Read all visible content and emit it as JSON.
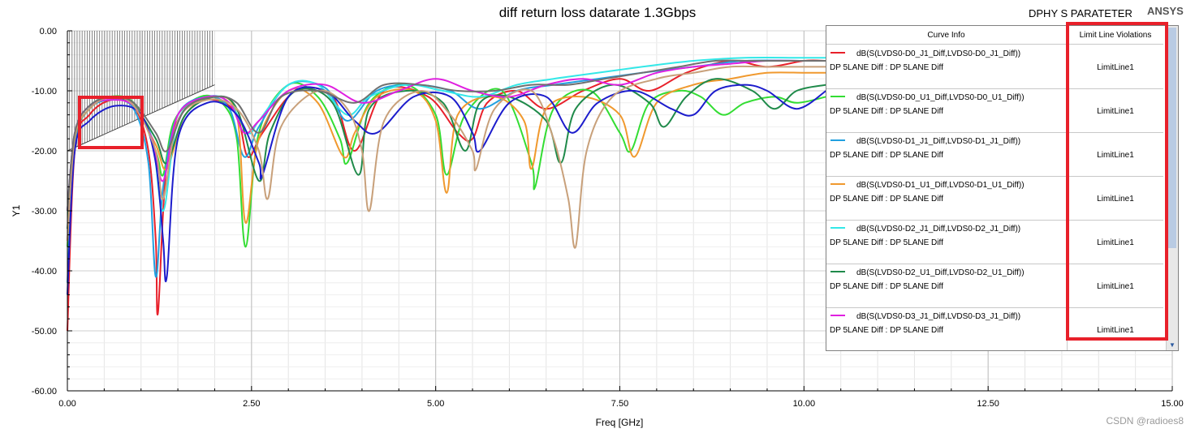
{
  "header": {
    "title": "diff return loss datarate 1.3Gbps",
    "project": "DPHY S PARATETER",
    "brand": "ANSYS"
  },
  "watermark": "CSDN @radioes8",
  "legend": {
    "col1": "Curve Info",
    "col2": "Limit Line Violations",
    "rows": [
      {
        "name": "dB(S(LVDS0-D0_J1_Diff,LVDS0-D0_J1_Diff))",
        "desc": "DP 5LANE Diff : DP 5LANE Diff",
        "violation": "LimitLine1",
        "color": "#e8202a"
      },
      {
        "name": "dB(S(LVDS0-D0_U1_Diff,LVDS0-D0_U1_Diff))",
        "desc": "DP 5LANE Diff : DP 5LANE Diff",
        "violation": "LimitLine1",
        "color": "#33dd33"
      },
      {
        "name": "dB(S(LVDS0-D1_J1_Diff,LVDS0-D1_J1_Diff))",
        "desc": "DP 5LANE Diff : DP 5LANE Diff",
        "violation": "LimitLine1",
        "color": "#22a0e0"
      },
      {
        "name": "dB(S(LVDS0-D1_U1_Diff,LVDS0-D1_U1_Diff))",
        "desc": "DP 5LANE Diff : DP 5LANE Diff",
        "violation": "LimitLine1",
        "color": "#f0992e"
      },
      {
        "name": "dB(S(LVDS0-D2_J1_Diff,LVDS0-D2_J1_Diff))",
        "desc": "DP 5LANE Diff : DP 5LANE Diff",
        "violation": "LimitLine1",
        "color": "#33e8e8"
      },
      {
        "name": "dB(S(LVDS0-D2_U1_Diff,LVDS0-D2_U1_Diff))",
        "desc": "DP 5LANE Diff : DP 5LANE Diff",
        "violation": "LimitLine1",
        "color": "#1f8a4a"
      },
      {
        "name": "dB(S(LVDS0-D3_J1_Diff,LVDS0-D3_J1_Diff))",
        "desc": "DP 5LANE Diff : DP 5LANE Diff",
        "violation": "LimitLine1",
        "color": "#e020e0"
      }
    ]
  },
  "chart_data": {
    "type": "line",
    "title": "diff return loss datarate 1.3Gbps",
    "xlabel": "Freq [GHz]",
    "ylabel": "Y1",
    "xlim": [
      0,
      15
    ],
    "ylim": [
      -60,
      0
    ],
    "x_ticks": [
      "0.00",
      "2.50",
      "5.00",
      "7.50",
      "10.00",
      "12.50",
      "15.00"
    ],
    "y_ticks": [
      "0.00",
      "-10.00",
      "-20.00",
      "-30.00",
      "-40.00",
      "-50.00",
      "-60.00"
    ],
    "grid": true,
    "limit_line": {
      "x": [
        0,
        2.0
      ],
      "y": [
        -20,
        -9
      ]
    },
    "series": [
      {
        "name": "dB(S(LVDS0-D0_J1_Diff,LVDS0-D0_J1_Diff))",
        "color": "#e8202a",
        "x": [
          0,
          0.1,
          0.3,
          0.6,
          0.9,
          1.1,
          1.2,
          1.23,
          1.35,
          1.6,
          2.0,
          2.3,
          2.45,
          2.65,
          3.1,
          3.6,
          3.9,
          4.3,
          4.9,
          5.3,
          5.5,
          5.7,
          6.1,
          6.5,
          7.0,
          7.5,
          7.9,
          8.4,
          9.0,
          9.5,
          10.0,
          10.3
        ],
        "y": [
          -50,
          -20,
          -14,
          -11.5,
          -12.5,
          -20,
          -35,
          -47,
          -22,
          -13,
          -11.5,
          -14,
          -21,
          -17,
          -10,
          -11,
          -20,
          -10,
          -11,
          -17,
          -18,
          -12,
          -10,
          -13,
          -10,
          -8,
          -10,
          -7,
          -5,
          -6,
          -5,
          -5
        ]
      },
      {
        "name": "dB(S(LVDS0-D0_U1_Diff,LVDS0-D0_U1_Diff))",
        "color": "#33dd33",
        "x": [
          0,
          0.1,
          0.3,
          0.55,
          0.9,
          1.2,
          1.3,
          1.45,
          1.8,
          2.1,
          2.3,
          2.42,
          2.6,
          3.0,
          3.4,
          3.7,
          3.8,
          4.1,
          4.6,
          5.0,
          5.15,
          5.4,
          5.9,
          6.3,
          6.35,
          6.6,
          7.1,
          7.5,
          7.65,
          7.9,
          8.3,
          8.6,
          8.9,
          9.2,
          9.6,
          9.9,
          10.3
        ],
        "y": [
          -36,
          -18,
          -13,
          -11,
          -12,
          -20,
          -24,
          -15,
          -11,
          -12,
          -18,
          -36,
          -17,
          -9,
          -11,
          -18,
          -22,
          -12,
          -9,
          -14,
          -24,
          -14,
          -10,
          -22,
          -26,
          -13,
          -10,
          -17,
          -20,
          -12,
          -10,
          -11,
          -14,
          -12,
          -11,
          -12,
          -11
        ]
      },
      {
        "name": "dB(S(LVDS0-D1_J1_Diff,LVDS0-D1_J1_Diff))",
        "color": "#22a0e0",
        "x": [
          0,
          0.1,
          0.3,
          0.6,
          0.9,
          1.1,
          1.2,
          1.3,
          1.5,
          1.9,
          2.2,
          2.4,
          2.6,
          3.0,
          3.5,
          3.8,
          4.2,
          4.7,
          5.2,
          5.6,
          6.1,
          6.6,
          7.2,
          7.8,
          8.5,
          9.2,
          10.0,
          10.3
        ],
        "y": [
          -42,
          -19,
          -13,
          -11.5,
          -13,
          -22,
          -41,
          -26,
          -14,
          -11,
          -13,
          -21,
          -16,
          -9,
          -9.5,
          -15,
          -10,
          -9,
          -10,
          -13,
          -10,
          -9,
          -8,
          -7,
          -6,
          -5,
          -5,
          -5
        ]
      },
      {
        "name": "dB(S(LVDS0-D1_U1_Diff,LVDS0-D1_U1_Diff))",
        "color": "#f0992e",
        "x": [
          0,
          0.1,
          0.3,
          0.6,
          0.9,
          1.2,
          1.35,
          1.6,
          2.0,
          2.3,
          2.42,
          2.6,
          3.0,
          3.4,
          3.75,
          3.9,
          4.2,
          4.7,
          5.0,
          5.15,
          5.3,
          5.8,
          6.2,
          6.3,
          6.5,
          7.0,
          7.5,
          7.7,
          8.0,
          8.5,
          9.0,
          9.5,
          10.0,
          10.3
        ],
        "y": [
          -35,
          -18,
          -13,
          -11,
          -12.5,
          -19,
          -23,
          -14,
          -11,
          -14,
          -32,
          -18,
          -10,
          -12,
          -21,
          -17,
          -11,
          -10,
          -15,
          -27,
          -14,
          -11,
          -15,
          -23,
          -13,
          -11,
          -14,
          -21,
          -12,
          -9,
          -8,
          -7,
          -7,
          -7
        ]
      },
      {
        "name": "dB(S(LVDS0-D2_J1_Diff,LVDS0-D2_J1_Diff))",
        "color": "#33e8e8",
        "x": [
          0,
          0.1,
          0.3,
          0.6,
          0.9,
          1.15,
          1.3,
          1.5,
          1.9,
          2.2,
          2.45,
          2.6,
          3.0,
          3.4,
          3.8,
          4.1,
          4.6,
          5.1,
          5.6,
          6.1,
          6.6,
          7.2,
          7.8,
          8.5,
          9.2,
          10.0,
          10.3
        ],
        "y": [
          -30,
          -17,
          -12.5,
          -11,
          -12.5,
          -18,
          -30,
          -15,
          -11,
          -12,
          -17,
          -15,
          -9,
          -9,
          -14,
          -11,
          -9,
          -10,
          -11,
          -9,
          -8,
          -7,
          -6,
          -5,
          -4.5,
          -4.5,
          -4.5
        ]
      },
      {
        "name": "dB(S(LVDS0-D2_U1_Diff,LVDS0-D2_U1_Diff))",
        "color": "#1f8a4a",
        "x": [
          0,
          0.1,
          0.3,
          0.6,
          0.9,
          1.2,
          1.35,
          1.6,
          2.0,
          2.3,
          2.6,
          2.75,
          3.1,
          3.6,
          3.95,
          4.1,
          4.6,
          5.1,
          5.4,
          5.6,
          6.0,
          6.5,
          6.7,
          6.9,
          7.4,
          7.9,
          8.1,
          8.4,
          8.8,
          9.3,
          9.6,
          9.9,
          10.3
        ],
        "y": [
          -33,
          -18,
          -13,
          -11,
          -12.5,
          -18,
          -22,
          -14,
          -11,
          -13,
          -25,
          -17,
          -10,
          -12,
          -24,
          -13,
          -10,
          -12,
          -20,
          -12,
          -11,
          -15,
          -22,
          -13,
          -9,
          -12,
          -16,
          -11,
          -8,
          -10,
          -13,
          -10,
          -9
        ]
      },
      {
        "name": "dB(S(LVDS0-D3_J1_Diff,LVDS0-D3_J1_Diff))",
        "color": "#e020e0",
        "x": [
          0,
          0.1,
          0.3,
          0.6,
          0.9,
          1.15,
          1.3,
          1.5,
          1.9,
          2.2,
          2.4,
          2.6,
          3.0,
          3.5,
          4.0,
          4.5,
          5.0,
          5.5,
          6.0,
          6.5,
          7.0,
          7.5,
          8.0,
          8.5,
          9.0,
          9.5,
          10.0,
          10.3
        ],
        "y": [
          -30,
          -17,
          -12.5,
          -11.5,
          -12.5,
          -18,
          -25,
          -14,
          -11,
          -12,
          -17,
          -15,
          -10,
          -9,
          -12,
          -10,
          -8,
          -10,
          -11,
          -9,
          -8,
          -9,
          -7,
          -6,
          -5.5,
          -5,
          -5,
          -5
        ]
      },
      {
        "name": "",
        "color": "#1c1ccc",
        "x": [
          0,
          0.1,
          0.3,
          0.65,
          1.0,
          1.2,
          1.3,
          1.35,
          1.5,
          1.9,
          2.3,
          2.6,
          2.65,
          3.0,
          3.5,
          3.9,
          4.2,
          4.7,
          5.2,
          5.5,
          5.6,
          6.0,
          6.5,
          6.85,
          7.2,
          7.7,
          8.2,
          8.5,
          8.8,
          9.2,
          9.5,
          9.9,
          10.3
        ],
        "y": [
          -44,
          -20,
          -15,
          -12.5,
          -14,
          -22,
          -35,
          -41,
          -18,
          -12,
          -14,
          -22,
          -24,
          -11,
          -10,
          -15,
          -17,
          -11,
          -11,
          -17,
          -20,
          -12,
          -11,
          -17,
          -12,
          -10,
          -13,
          -14,
          -10,
          -9,
          -10,
          -13,
          -10
        ]
      },
      {
        "name": "",
        "color": "#c8a07a",
        "x": [
          0,
          0.1,
          0.3,
          0.6,
          0.9,
          1.2,
          1.3,
          1.5,
          1.9,
          2.3,
          2.6,
          2.72,
          2.9,
          3.4,
          3.8,
          4.0,
          4.1,
          4.3,
          4.8,
          5.2,
          5.5,
          5.55,
          5.8,
          6.3,
          6.6,
          6.8,
          6.9,
          7.05,
          7.4,
          8.0,
          8.5,
          9.0,
          9.5,
          10.0,
          10.3
        ],
        "y": [
          -35,
          -18,
          -13,
          -11,
          -12.5,
          -20,
          -28,
          -15,
          -11.5,
          -13,
          -20,
          -28,
          -16,
          -10,
          -13,
          -20,
          -30,
          -15,
          -10,
          -14,
          -20,
          -23,
          -13,
          -10,
          -18,
          -28,
          -36,
          -20,
          -11,
          -8,
          -7,
          -6,
          -6,
          -6,
          -6
        ]
      },
      {
        "name": "",
        "color": "#707070",
        "x": [
          0,
          0.1,
          0.3,
          0.6,
          0.9,
          1.2,
          1.35,
          1.6,
          2.0,
          2.3,
          2.6,
          2.9,
          3.4,
          3.9,
          4.3,
          4.8,
          5.3,
          5.8,
          6.3,
          6.8,
          7.3,
          7.8,
          8.3,
          8.8,
          9.3,
          9.8,
          10.3
        ],
        "y": [
          -30,
          -17,
          -12.5,
          -11,
          -12,
          -17,
          -20,
          -13,
          -11,
          -12,
          -17,
          -11,
          -10,
          -12,
          -9,
          -9,
          -10,
          -10,
          -9,
          -9,
          -8,
          -7,
          -6,
          -5,
          -5,
          -5,
          -5
        ]
      }
    ]
  },
  "highlights": [
    {
      "label": "low-frequency-limit-region"
    },
    {
      "label": "limit-violations-column"
    }
  ]
}
